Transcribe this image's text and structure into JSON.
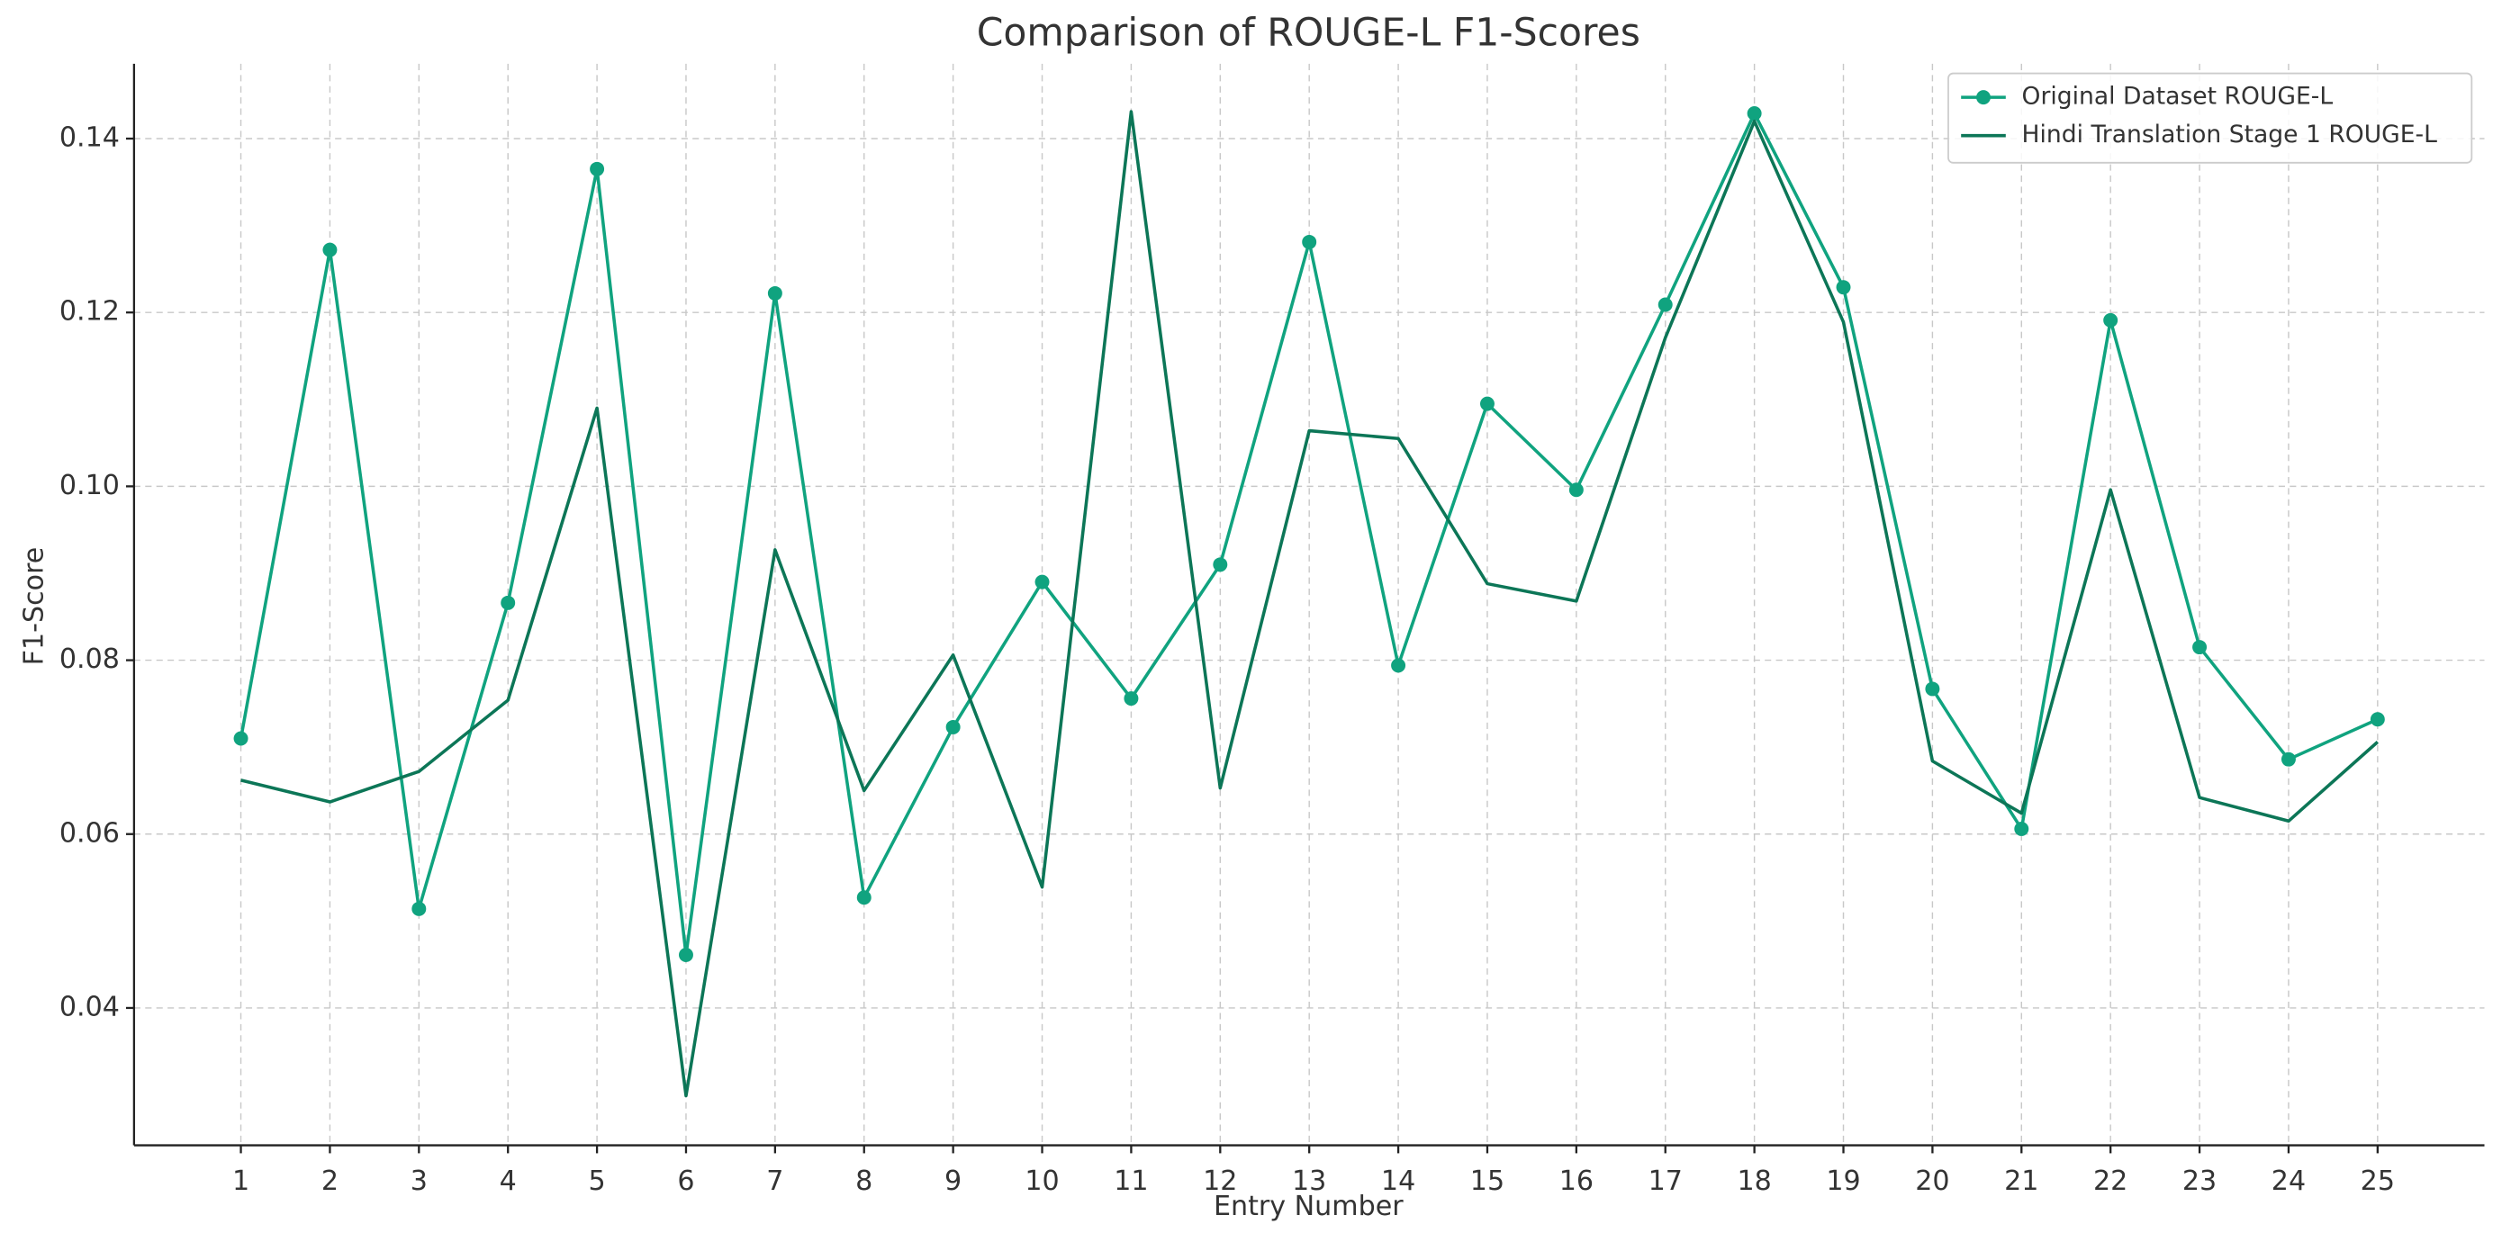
{
  "chart_data": {
    "type": "line",
    "title": "Comparison of ROUGE-L F1-Scores",
    "x_label": "Entry Number",
    "y_label": "F1-Score",
    "x": [
      1,
      2,
      3,
      4,
      5,
      6,
      7,
      8,
      9,
      10,
      11,
      12,
      13,
      14,
      15,
      16,
      17,
      18,
      19,
      20,
      21,
      22,
      23,
      24,
      25
    ],
    "series": [
      {
        "name": "Original Dataset ROUGE-L",
        "color": "#10a37f",
        "marker": "o",
        "values": [
          0.071,
          0.1272,
          0.0514,
          0.0866,
          0.1365,
          0.0461,
          0.1222,
          0.0527,
          0.0723,
          0.089,
          0.0756,
          0.091,
          0.1281,
          0.0794,
          0.1095,
          0.0996,
          0.1209,
          0.1429,
          0.1229,
          0.0767,
          0.0606,
          0.1191,
          0.0815,
          0.0686,
          0.0732
        ]
      },
      {
        "name": "Hindi Translation Stage 1 ROUGE-L",
        "color": "#0c7657",
        "marker": "none",
        "values": [
          0.0662,
          0.0637,
          0.0672,
          0.0754,
          0.109,
          0.0299,
          0.0927,
          0.065,
          0.0806,
          0.0539,
          0.1431,
          0.0653,
          0.1064,
          0.1055,
          0.0888,
          0.0868,
          0.1171,
          0.142,
          0.1189,
          0.0684,
          0.0624,
          0.0996,
          0.0642,
          0.0615,
          0.0706
        ]
      }
    ],
    "xlim": [
      -0.2,
      26.2
    ],
    "xticks": [
      1,
      2,
      3,
      4,
      5,
      6,
      7,
      8,
      9,
      10,
      11,
      12,
      13,
      14,
      15,
      16,
      17,
      18,
      19,
      20,
      21,
      22,
      23,
      24,
      25
    ],
    "ylim": [
      0.0242,
      0.1486
    ],
    "yticks": [
      {
        "value": 0.04,
        "label": "0.04"
      },
      {
        "value": 0.06,
        "label": "0.06"
      },
      {
        "value": 0.08,
        "label": "0.08"
      },
      {
        "value": 0.1,
        "label": "0.10"
      },
      {
        "value": 0.12,
        "label": "0.12"
      },
      {
        "value": 0.14,
        "label": "0.14"
      }
    ],
    "grid": true,
    "legend": "upper right"
  }
}
